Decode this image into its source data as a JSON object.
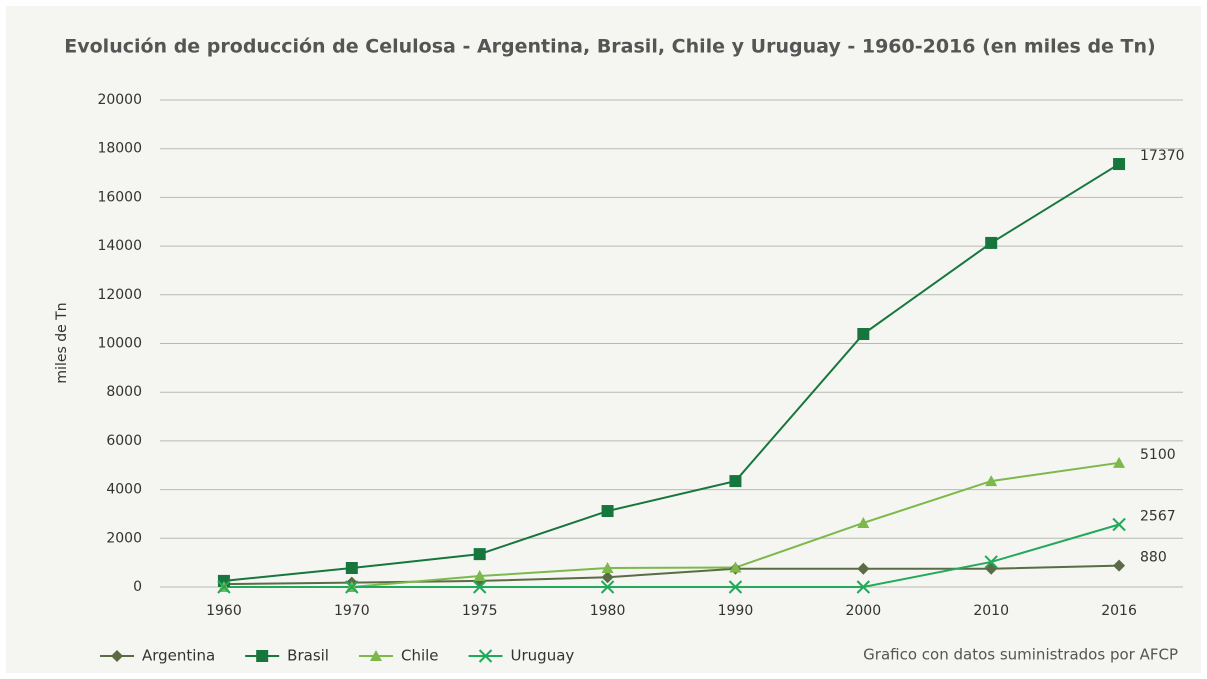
{
  "chart_data": {
    "type": "line",
    "title": "Evolución de producción de Celulosa - Argentina, Brasil, Chile y Uruguay - 1960-2016 (en miles de Tn)",
    "ylabel": "miles de Tn",
    "note": "Grafico con datos suministrados por AFCP",
    "categories": [
      "1960",
      "1970",
      "1975",
      "1980",
      "1990",
      "2000",
      "2010",
      "2016"
    ],
    "ylim": [
      0,
      20000
    ],
    "yticks": [
      0,
      2000,
      4000,
      6000,
      8000,
      10000,
      12000,
      14000,
      16000,
      18000,
      20000
    ],
    "grid": true,
    "legend": "bottom-left",
    "series": [
      {
        "name": "Argentina",
        "color": "#5b6b45",
        "marker": "diamond",
        "values": [
          120,
          180,
          250,
          400,
          750,
          750,
          750,
          880
        ]
      },
      {
        "name": "Brasil",
        "color": "#16763d",
        "marker": "square",
        "values": [
          250,
          780,
          1350,
          3120,
          4350,
          10390,
          14130,
          17370
        ]
      },
      {
        "name": "Chile",
        "color": "#7cb84a",
        "marker": "triangle",
        "values": [
          0,
          0,
          450,
          780,
          800,
          2630,
          4350,
          5100
        ]
      },
      {
        "name": "Uruguay",
        "color": "#23a95b",
        "marker": "x",
        "values": [
          0,
          0,
          0,
          0,
          0,
          0,
          1030,
          2567
        ]
      }
    ]
  }
}
